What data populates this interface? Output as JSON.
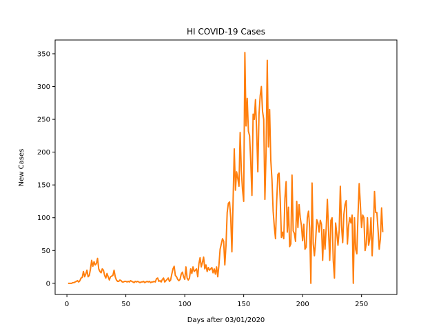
{
  "chart_data": {
    "type": "line",
    "title": "HI COVID-19 Cases",
    "xlabel": "Days after 03/01/2020",
    "ylabel": "New Cases",
    "xlim": [
      -10,
      280
    ],
    "ylim": [
      -17,
      371
    ],
    "xticks": [
      0,
      50,
      100,
      150,
      200,
      250
    ],
    "yticks": [
      0,
      50,
      100,
      150,
      200,
      250,
      300,
      350
    ],
    "grid": false,
    "series": [
      {
        "color": "#ff7f0e",
        "x": [
          1,
          2,
          3,
          4,
          5,
          6,
          7,
          8,
          9,
          10,
          11,
          12,
          13,
          14,
          15,
          16,
          17,
          18,
          19,
          20,
          21,
          22,
          23,
          24,
          25,
          26,
          27,
          28,
          29,
          30,
          31,
          32,
          33,
          34,
          35,
          36,
          37,
          38,
          39,
          40,
          41,
          42,
          43,
          44,
          45,
          46,
          47,
          48,
          49,
          50,
          51,
          52,
          53,
          54,
          55,
          56,
          57,
          58,
          59,
          60,
          61,
          62,
          63,
          64,
          65,
          66,
          67,
          68,
          69,
          70,
          71,
          72,
          73,
          74,
          75,
          76,
          77,
          78,
          79,
          80,
          81,
          82,
          83,
          84,
          85,
          86,
          87,
          88,
          89,
          90,
          91,
          92,
          93,
          94,
          95,
          96,
          97,
          98,
          99,
          100,
          101,
          102,
          103,
          104,
          105,
          106,
          107,
          108,
          109,
          110,
          111,
          112,
          113,
          114,
          115,
          116,
          117,
          118,
          119,
          120,
          121,
          122,
          123,
          124,
          125,
          126,
          127,
          128,
          129,
          130,
          131,
          132,
          133,
          134,
          135,
          136,
          137,
          138,
          139,
          140,
          141,
          142,
          143,
          144,
          145,
          146,
          147,
          148,
          149,
          150,
          151,
          152,
          153,
          154,
          155,
          156,
          157,
          158,
          159,
          160,
          161,
          162,
          163,
          164,
          165,
          166,
          167,
          168,
          169,
          170,
          171,
          172,
          173,
          174,
          175,
          176,
          177,
          178,
          179,
          180,
          181,
          182,
          183,
          184,
          185,
          186,
          187,
          188,
          189,
          190,
          191,
          192,
          193,
          194,
          195,
          196,
          197,
          198,
          199,
          200,
          201,
          202,
          203,
          204,
          205,
          206,
          207,
          208,
          209,
          210,
          211,
          212,
          213,
          214,
          215,
          216,
          217,
          218,
          219,
          220,
          221,
          222,
          223,
          224,
          225,
          226,
          227,
          228,
          229,
          230,
          231,
          232,
          233,
          234,
          235,
          236,
          237,
          238,
          239,
          240,
          241,
          242,
          243,
          244,
          245,
          246,
          247,
          248,
          249,
          250,
          251,
          252,
          253,
          254,
          255,
          256,
          257,
          258,
          259,
          260,
          261,
          262,
          263,
          264,
          265,
          266,
          267,
          268
        ],
        "y": [
          0,
          0,
          0,
          0,
          1,
          1,
          2,
          3,
          4,
          2,
          4,
          8,
          9,
          18,
          10,
          14,
          20,
          10,
          12,
          22,
          35,
          26,
          33,
          28,
          30,
          38,
          22,
          18,
          16,
          22,
          20,
          12,
          8,
          15,
          10,
          5,
          10,
          11,
          12,
          20,
          10,
          5,
          3,
          3,
          5,
          4,
          2,
          2,
          3,
          3,
          2,
          3,
          2,
          4,
          3,
          2,
          1,
          3,
          2,
          3,
          2,
          1,
          2,
          2,
          3,
          1,
          2,
          3,
          2,
          3,
          1,
          2,
          2,
          3,
          2,
          7,
          8,
          3,
          4,
          2,
          6,
          8,
          2,
          4,
          6,
          8,
          3,
          5,
          14,
          22,
          26,
          12,
          10,
          6,
          4,
          6,
          14,
          17,
          10,
          6,
          25,
          8,
          5,
          8,
          22,
          15,
          25,
          18,
          20,
          22,
          10,
          30,
          39,
          25,
          32,
          40,
          22,
          28,
          18,
          24,
          20,
          22,
          24,
          16,
          22,
          14,
          25,
          10,
          28,
          52,
          60,
          68,
          64,
          28,
          58,
          108,
          122,
          124,
          100,
          48,
          125,
          205,
          142,
          170,
          160,
          148,
          230,
          172,
          143,
          125,
          352,
          240,
          282,
          232,
          225,
          185,
          134,
          258,
          250,
          280,
          232,
          170,
          258,
          286,
          300,
          262,
          250,
          128,
          200,
          340,
          208,
          265,
          188,
          158,
          110,
          86,
          68,
          125,
          166,
          168,
          128,
          70,
          78,
          68,
          130,
          155,
          78,
          116,
          56,
          60,
          165,
          80,
          76,
          64,
          125,
          85,
          120,
          100,
          88,
          65,
          90,
          52,
          55,
          100,
          110,
          84,
          0,
          153,
          60,
          42,
          64,
          97,
          92,
          78,
          96,
          90,
          35,
          82,
          52,
          84,
          128,
          80,
          35,
          96,
          100,
          35,
          8,
          92,
          76,
          58,
          80,
          148,
          88,
          62,
          105,
          120,
          126,
          60,
          88,
          100,
          92,
          104,
          0,
          100,
          52,
          45,
          104,
          152,
          120,
          85,
          104,
          100,
          50,
          60,
          100,
          58,
          68,
          100,
          42,
          80,
          140,
          108,
          108,
          82,
          52,
          68,
          115,
          78
        ]
      }
    ]
  }
}
